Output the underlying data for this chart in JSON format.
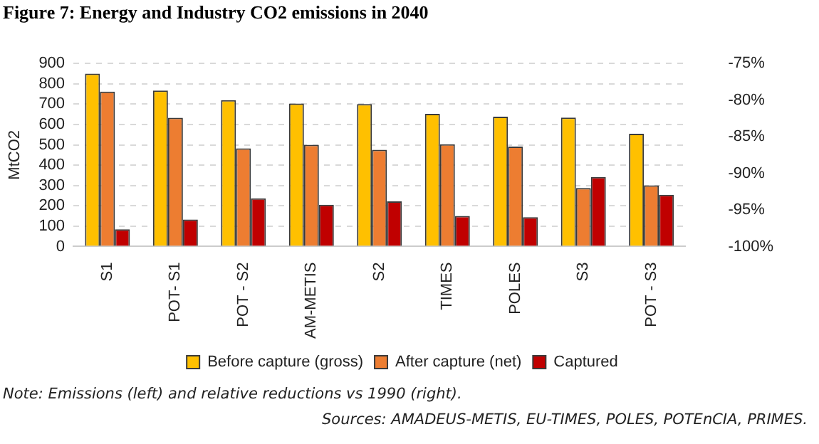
{
  "chart_data": {
    "type": "bar",
    "title": "Figure 7: Energy and Industry CO2 emissions in 2040",
    "ylabel": "MtCO2",
    "categories": [
      "S1",
      "POT- S1",
      "POT - S2",
      "AM-METIS",
      "S2",
      "TIMES",
      "POLES",
      "S3",
      "POT - S3"
    ],
    "series": [
      {
        "name": "Before capture (gross)",
        "color": "#ffc000",
        "values": [
          850,
          767,
          720,
          703,
          700,
          652,
          638,
          634,
          554
        ]
      },
      {
        "name": "After capture (net)",
        "color": "#ed7d31",
        "values": [
          762,
          633,
          483,
          500,
          476,
          503,
          491,
          288,
          301
        ]
      },
      {
        "name": "Captured",
        "color": "#c00000",
        "values": [
          85,
          133,
          237,
          205,
          222,
          150,
          144,
          342,
          254
        ]
      }
    ],
    "ylim": [
      0,
      900
    ],
    "yticks": [
      0,
      100,
      200,
      300,
      400,
      500,
      600,
      700,
      800,
      900
    ],
    "y2lim": [
      -100,
      -75
    ],
    "y2ticks": [
      {
        "value": -100,
        "label": "-100%"
      },
      {
        "value": -95,
        "label": "-95%"
      },
      {
        "value": -90,
        "label": "-90%"
      },
      {
        "value": -85,
        "label": "-85%"
      },
      {
        "value": -80,
        "label": "-80%"
      },
      {
        "value": -75,
        "label": "-75%"
      }
    ],
    "grid": "y",
    "legend": "bottom",
    "annotations": [
      "Note: Emissions (left) and relative reductions vs 1990 (right).",
      "Sources: AMADEUS-METIS, EU-TIMES, POLES, POTEnCIA, PRIMES."
    ]
  }
}
